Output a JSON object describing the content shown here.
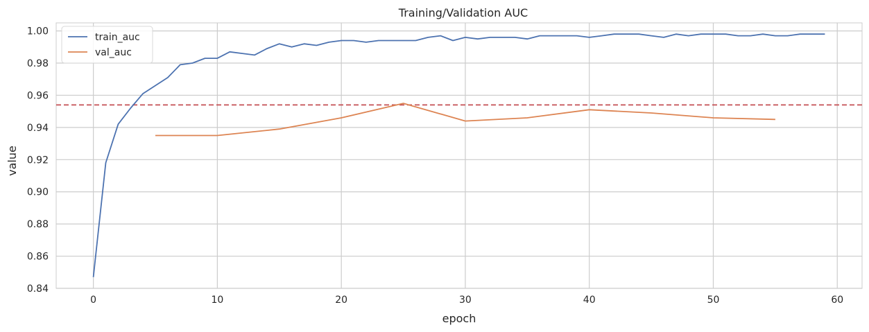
{
  "chart_data": {
    "type": "line",
    "title": "Training/Validation AUC",
    "xlabel": "epoch",
    "ylabel": "value",
    "xlim": [
      -3,
      62
    ],
    "ylim": [
      0.84,
      1.005
    ],
    "xticks": [
      0,
      10,
      20,
      30,
      40,
      50,
      60
    ],
    "yticks": [
      0.84,
      0.86,
      0.88,
      0.9,
      0.92,
      0.94,
      0.96,
      0.98,
      1.0
    ],
    "ytick_labels": [
      "0.84",
      "0.86",
      "0.88",
      "0.90",
      "0.92",
      "0.94",
      "0.96",
      "0.98",
      "1.00"
    ],
    "grid": true,
    "legend_position": "top-left",
    "series": [
      {
        "name": "train_auc",
        "color": "#4c72b0",
        "x": [
          0,
          1,
          2,
          3,
          4,
          5,
          6,
          7,
          8,
          9,
          10,
          11,
          12,
          13,
          14,
          15,
          16,
          17,
          18,
          19,
          20,
          21,
          22,
          23,
          24,
          25,
          26,
          27,
          28,
          29,
          30,
          31,
          32,
          33,
          34,
          35,
          36,
          37,
          38,
          39,
          40,
          41,
          42,
          43,
          44,
          45,
          46,
          47,
          48,
          49,
          50,
          51,
          52,
          53,
          54,
          55,
          56,
          57,
          58,
          59
        ],
        "y": [
          0.847,
          0.918,
          0.942,
          0.952,
          0.961,
          0.966,
          0.971,
          0.979,
          0.98,
          0.983,
          0.983,
          0.987,
          0.986,
          0.985,
          0.989,
          0.992,
          0.99,
          0.992,
          0.991,
          0.993,
          0.994,
          0.994,
          0.993,
          0.994,
          0.994,
          0.994,
          0.994,
          0.996,
          0.997,
          0.994,
          0.996,
          0.995,
          0.996,
          0.996,
          0.996,
          0.995,
          0.997,
          0.997,
          0.997,
          0.997,
          0.996,
          0.997,
          0.998,
          0.998,
          0.998,
          0.997,
          0.996,
          0.998,
          0.997,
          0.998,
          0.998,
          0.998,
          0.997,
          0.997,
          0.998,
          0.997,
          0.997,
          0.998,
          0.998,
          0.998
        ]
      },
      {
        "name": "val_auc",
        "color": "#dd8452",
        "x": [
          5,
          10,
          15,
          20,
          25,
          30,
          35,
          40,
          45,
          50,
          55
        ],
        "y": [
          0.935,
          0.935,
          0.939,
          0.946,
          0.955,
          0.944,
          0.946,
          0.951,
          0.949,
          0.946,
          0.945
        ]
      }
    ],
    "reference_line": {
      "y": 0.954,
      "color": "#c44e52",
      "style": "dashed"
    }
  }
}
